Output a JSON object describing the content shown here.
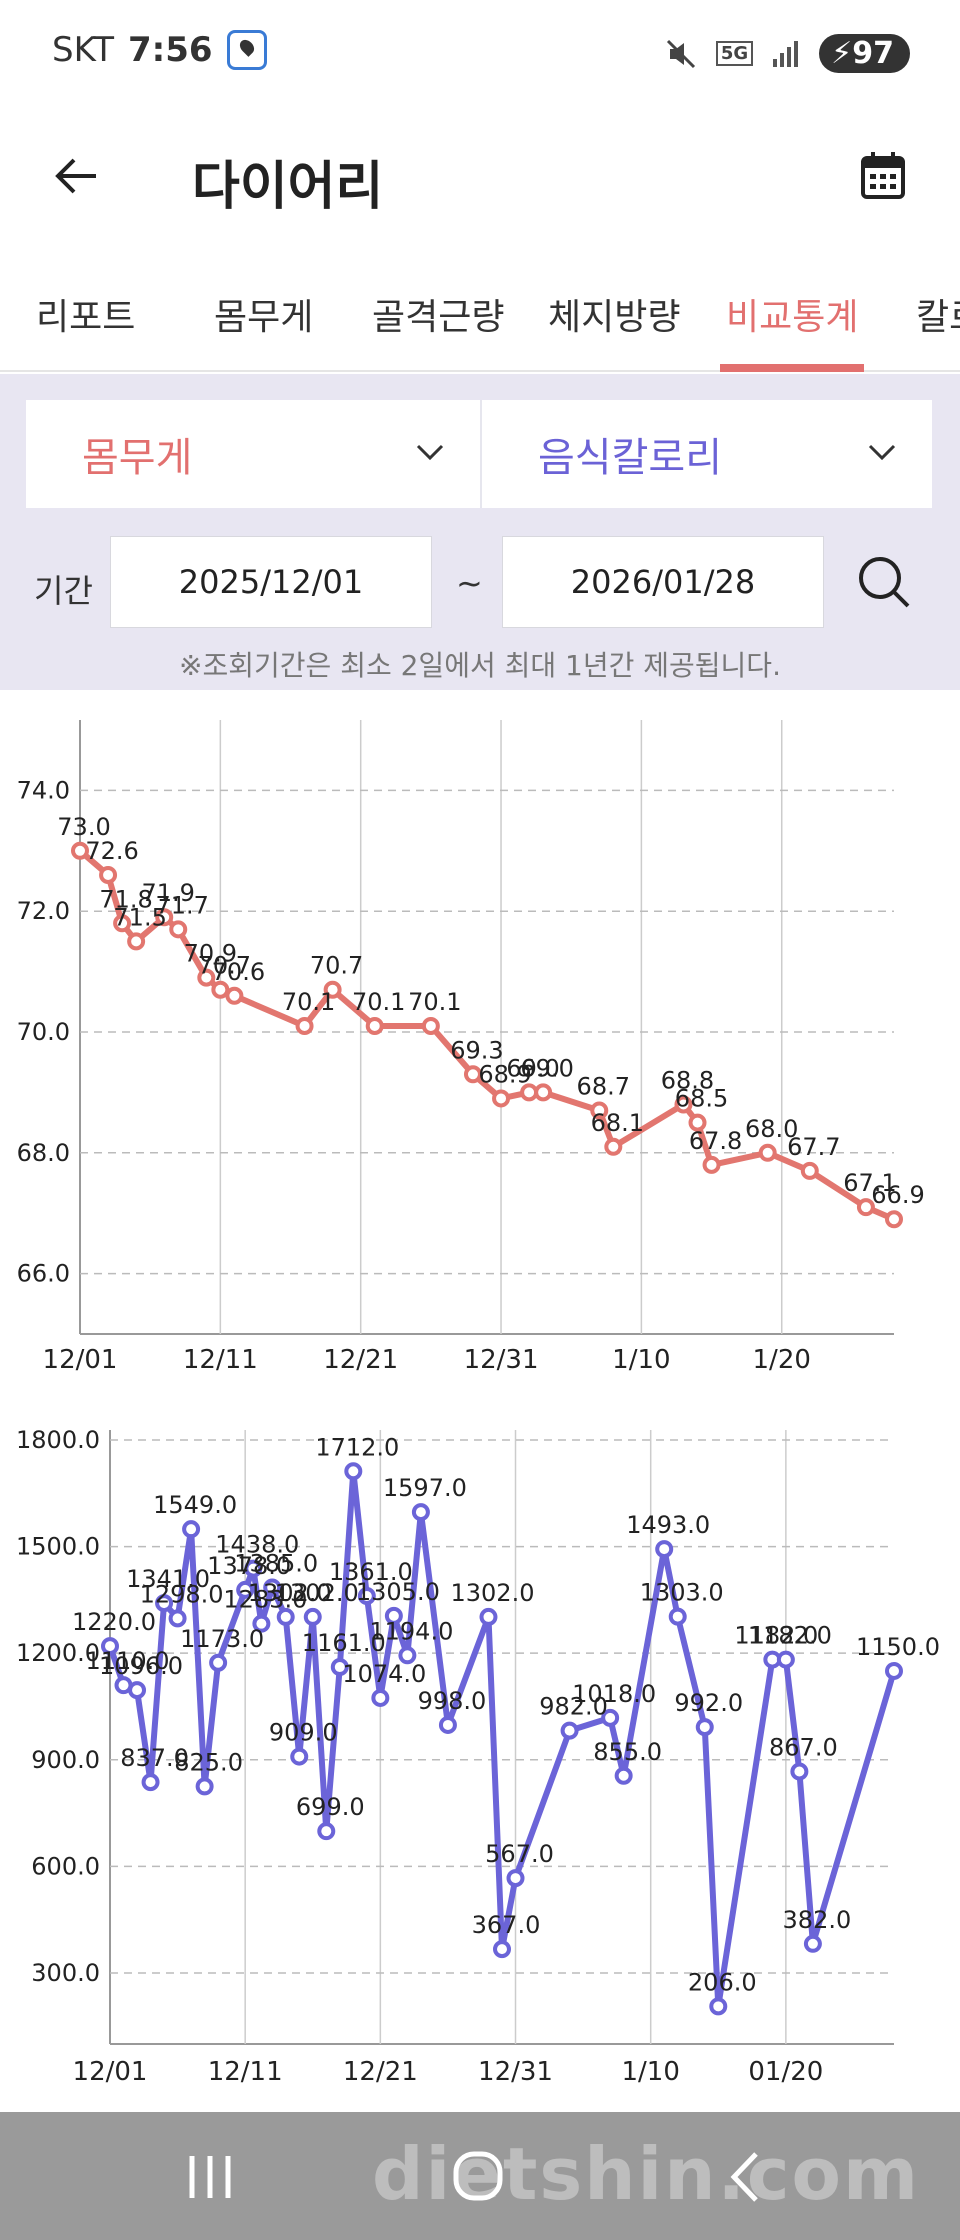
{
  "status": {
    "carrier": "SKT",
    "time": "7:56",
    "network": "5G",
    "battery": "97"
  },
  "header": {
    "title": "다이어리"
  },
  "tabs": [
    {
      "label": "리포트",
      "active": false
    },
    {
      "label": "몸무게",
      "active": false
    },
    {
      "label": "골격근량",
      "active": false
    },
    {
      "label": "체지방량",
      "active": false
    },
    {
      "label": "비교통계",
      "active": true
    },
    {
      "label": "칼로",
      "active": false
    }
  ],
  "filter": {
    "select1": "몸무게",
    "select2": "음식칼로리",
    "period_label": "기간",
    "start_date": "2025/12/01",
    "end_date": "2026/01/28",
    "tilde": "~",
    "notice": "※조회기간은 최소 2일에서 최대 1년간 제공됩니다."
  },
  "colors": {
    "accent": "#e2706f",
    "secondary": "#6b62d6",
    "weight_series": "#e2766f",
    "calorie_series": "#6b64d8"
  },
  "chart_data": [
    {
      "type": "line",
      "title": "",
      "ylim": [
        65,
        75
      ],
      "yticks": [
        "74.0",
        "72.0",
        "70.0",
        "68.0",
        "66.0"
      ],
      "ytick_values": [
        74,
        72,
        70,
        68,
        66
      ],
      "xticks": [
        "12/01",
        "12/11",
        "12/21",
        "12/31",
        "1/10",
        "1/20"
      ],
      "xtick_days": [
        0,
        10,
        20,
        30,
        40,
        50
      ],
      "xlim": [
        0,
        58
      ],
      "grid": true,
      "series": [
        {
          "color": "#e2766f",
          "points": [
            {
              "day": 0,
              "value": 73.0,
              "label": "73.0"
            },
            {
              "day": 2,
              "value": 72.6,
              "label": "72.6"
            },
            {
              "day": 3,
              "value": 71.8,
              "label": "71.8"
            },
            {
              "day": 4,
              "value": 71.5,
              "label": "71.5"
            },
            {
              "day": 6,
              "value": 71.9,
              "label": "71.9"
            },
            {
              "day": 7,
              "value": 71.7,
              "label": "71.7"
            },
            {
              "day": 9,
              "value": 70.9,
              "label": "70.9"
            },
            {
              "day": 10,
              "value": 70.7,
              "label": "70.7"
            },
            {
              "day": 11,
              "value": 70.6,
              "label": "70.6"
            },
            {
              "day": 16,
              "value": 70.1,
              "label": "70.1"
            },
            {
              "day": 18,
              "value": 70.7,
              "label": "70.7"
            },
            {
              "day": 21,
              "value": 70.1,
              "label": "70.1"
            },
            {
              "day": 25,
              "value": 70.1,
              "label": "70.1"
            },
            {
              "day": 28,
              "value": 69.3,
              "label": "69.3"
            },
            {
              "day": 30,
              "value": 68.9,
              "label": "68.9"
            },
            {
              "day": 32,
              "value": 69.0,
              "label": "69.0"
            },
            {
              "day": 33,
              "value": 69.0,
              "label": "69.0"
            },
            {
              "day": 37,
              "value": 68.7,
              "label": "68.7"
            },
            {
              "day": 38,
              "value": 68.1,
              "label": "68.1"
            },
            {
              "day": 43,
              "value": 68.8,
              "label": "68.8"
            },
            {
              "day": 44,
              "value": 68.5,
              "label": "68.5"
            },
            {
              "day": 45,
              "value": 67.8,
              "label": "67.8"
            },
            {
              "day": 49,
              "value": 68.0,
              "label": "68.0"
            },
            {
              "day": 52,
              "value": 67.7,
              "label": "67.7"
            },
            {
              "day": 56,
              "value": 67.1,
              "label": "67.1"
            },
            {
              "day": 58,
              "value": 66.9,
              "label": "66.9"
            }
          ]
        }
      ]
    },
    {
      "type": "line",
      "title": "",
      "ylim": [
        100,
        1800
      ],
      "yticks": [
        "1800.0",
        "1500.0",
        "1200.0",
        "900.0",
        "600.0",
        "300.0"
      ],
      "ytick_values": [
        1800,
        1500,
        1200,
        900,
        600,
        300
      ],
      "xticks": [
        "12/01",
        "12/11",
        "12/21",
        "12/31",
        "1/10",
        "01/20"
      ],
      "xtick_days": [
        0,
        10,
        20,
        30,
        40,
        50
      ],
      "xlim": [
        0,
        58
      ],
      "grid": true,
      "series": [
        {
          "color": "#6b64d8",
          "points": [
            {
              "day": 0,
              "value": 1220,
              "label": "1220.0"
            },
            {
              "day": 1,
              "value": 1110,
              "label": "1110.0"
            },
            {
              "day": 2,
              "value": 1096,
              "label": "1096.0"
            },
            {
              "day": 3,
              "value": 837,
              "label": "837.0"
            },
            {
              "day": 4,
              "value": 1341,
              "label": "1341.0"
            },
            {
              "day": 5,
              "value": 1298,
              "label": "1298.0"
            },
            {
              "day": 6,
              "value": 1549,
              "label": "1549.0"
            },
            {
              "day": 7,
              "value": 825,
              "label": "825.0"
            },
            {
              "day": 8,
              "value": 1173,
              "label": "1173.0"
            },
            {
              "day": 10,
              "value": 1378,
              "label": "1378.0"
            },
            {
              "day": 10.6,
              "value": 1438,
              "label": "1438.0"
            },
            {
              "day": 11.2,
              "value": 1283,
              "label": "1283.0"
            },
            {
              "day": 12,
              "value": 1385,
              "label": "1385.0"
            },
            {
              "day": 13,
              "value": 1302,
              "label": "1302.0"
            },
            {
              "day": 14,
              "value": 909,
              "label": "909.0"
            },
            {
              "day": 15,
              "value": 1302,
              "label": "1302.0"
            },
            {
              "day": 16,
              "value": 699,
              "label": "699.0"
            },
            {
              "day": 17,
              "value": 1161,
              "label": "1161.0"
            },
            {
              "day": 18,
              "value": 1712,
              "label": "1712.0"
            },
            {
              "day": 19,
              "value": 1361,
              "label": "1361.0"
            },
            {
              "day": 20,
              "value": 1074,
              "label": "1074.0"
            },
            {
              "day": 21,
              "value": 1305,
              "label": "1305.0"
            },
            {
              "day": 22,
              "value": 1194,
              "label": "1194.0"
            },
            {
              "day": 23,
              "value": 1597,
              "label": "1597.0"
            },
            {
              "day": 25,
              "value": 998,
              "label": "998.0"
            },
            {
              "day": 28,
              "value": 1302,
              "label": "1302.0"
            },
            {
              "day": 29,
              "value": 367,
              "label": "367.0"
            },
            {
              "day": 30,
              "value": 567,
              "label": "567.0"
            },
            {
              "day": 34,
              "value": 982,
              "label": "982.0"
            },
            {
              "day": 37,
              "value": 1018,
              "label": "1018.0"
            },
            {
              "day": 38,
              "value": 855,
              "label": "855.0"
            },
            {
              "day": 41,
              "value": 1493,
              "label": "1493.0"
            },
            {
              "day": 42,
              "value": 1303,
              "label": "1303.0"
            },
            {
              "day": 44,
              "value": 992,
              "label": "992.0"
            },
            {
              "day": 45,
              "value": 206,
              "label": "206.0"
            },
            {
              "day": 49,
              "value": 1182,
              "label": "1182.0"
            },
            {
              "day": 50,
              "value": 1182,
              "label": "1182.0"
            },
            {
              "day": 51,
              "value": 867,
              "label": "867.0"
            },
            {
              "day": 52,
              "value": 382,
              "label": "382.0"
            },
            {
              "day": 58,
              "value": 1150,
              "label": "1150.0"
            }
          ]
        }
      ]
    }
  ],
  "navigation": {
    "recents_icon": "recents-icon",
    "home_icon": "home-icon",
    "back_icon": "nav-back-icon",
    "watermark": "dietshin.com"
  }
}
